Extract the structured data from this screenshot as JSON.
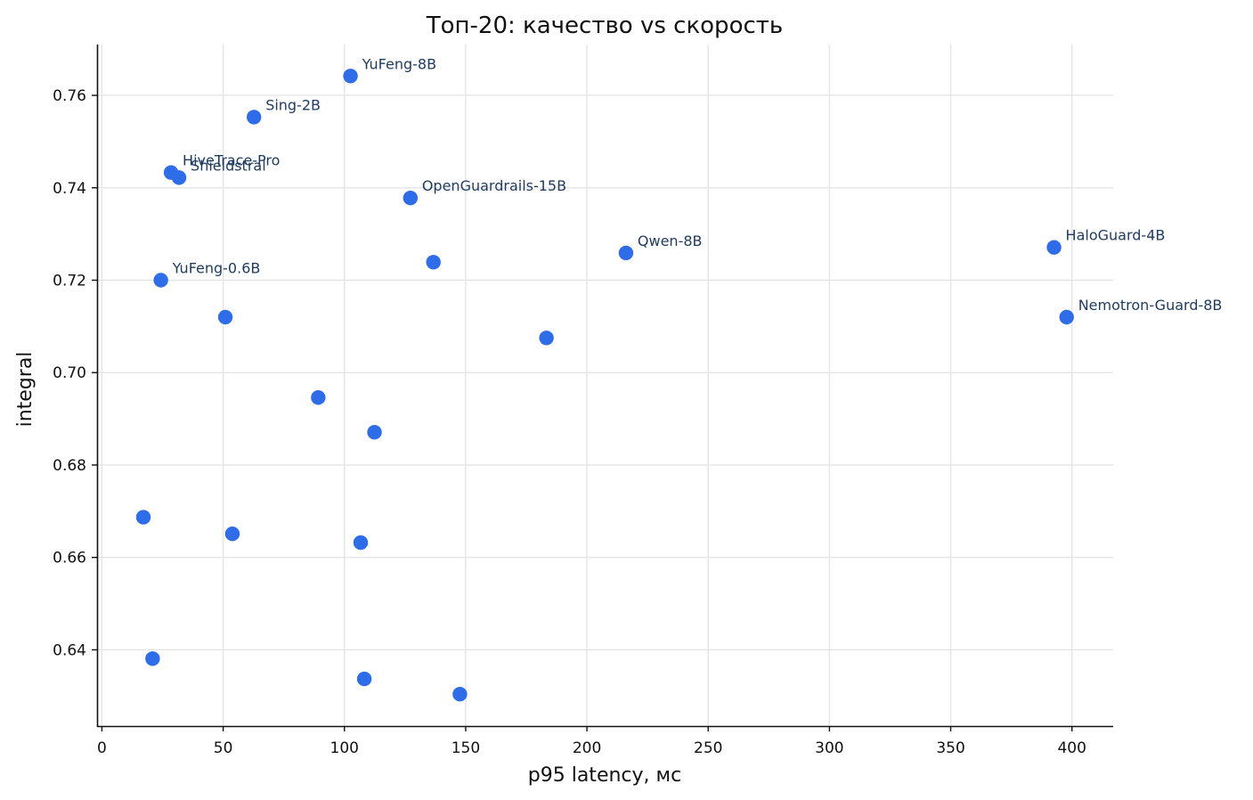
{
  "chart_data": {
    "type": "scatter",
    "title": "Топ-20: качество vs скорость",
    "xlabel": "p95 latency, мс",
    "ylabel": "integral",
    "xlim": [
      -2,
      417
    ],
    "ylim": [
      0.6235,
      0.771
    ],
    "xticks": [
      0,
      50,
      100,
      150,
      200,
      250,
      300,
      350,
      400
    ],
    "yticks": [
      0.64,
      0.66,
      0.68,
      0.7,
      0.72,
      0.74,
      0.76
    ],
    "grid": true,
    "marker_color": "#2f6ce8",
    "label_color": "#1e3a5f",
    "points": [
      {
        "x": 102.5,
        "y": 0.7642,
        "label": "YuFeng-8B"
      },
      {
        "x": 62.7,
        "y": 0.7553,
        "label": "Sing-2B"
      },
      {
        "x": 28.5,
        "y": 0.7433,
        "label": "HiveTrace-Pro"
      },
      {
        "x": 31.8,
        "y": 0.7422,
        "label": "Shieldstral"
      },
      {
        "x": 127.2,
        "y": 0.7378,
        "label": "OpenGuardrails-15B"
      },
      {
        "x": 392.6,
        "y": 0.7271,
        "label": "HaloGuard-4B"
      },
      {
        "x": 216.1,
        "y": 0.7259,
        "label": "Qwen-8B"
      },
      {
        "x": 136.7,
        "y": 0.7239,
        "label": ""
      },
      {
        "x": 24.3,
        "y": 0.72,
        "label": "YuFeng-0.6B"
      },
      {
        "x": 397.8,
        "y": 0.712,
        "label": "Nemotron-Guard-8B"
      },
      {
        "x": 50.9,
        "y": 0.712,
        "label": ""
      },
      {
        "x": 183.3,
        "y": 0.7075,
        "label": ""
      },
      {
        "x": 89.2,
        "y": 0.6946,
        "label": ""
      },
      {
        "x": 112.4,
        "y": 0.6871,
        "label": ""
      },
      {
        "x": 17.1,
        "y": 0.6687,
        "label": ""
      },
      {
        "x": 53.8,
        "y": 0.6651,
        "label": ""
      },
      {
        "x": 106.7,
        "y": 0.6632,
        "label": ""
      },
      {
        "x": 20.9,
        "y": 0.6381,
        "label": ""
      },
      {
        "x": 108.2,
        "y": 0.6337,
        "label": ""
      },
      {
        "x": 147.6,
        "y": 0.6304,
        "label": ""
      }
    ]
  }
}
